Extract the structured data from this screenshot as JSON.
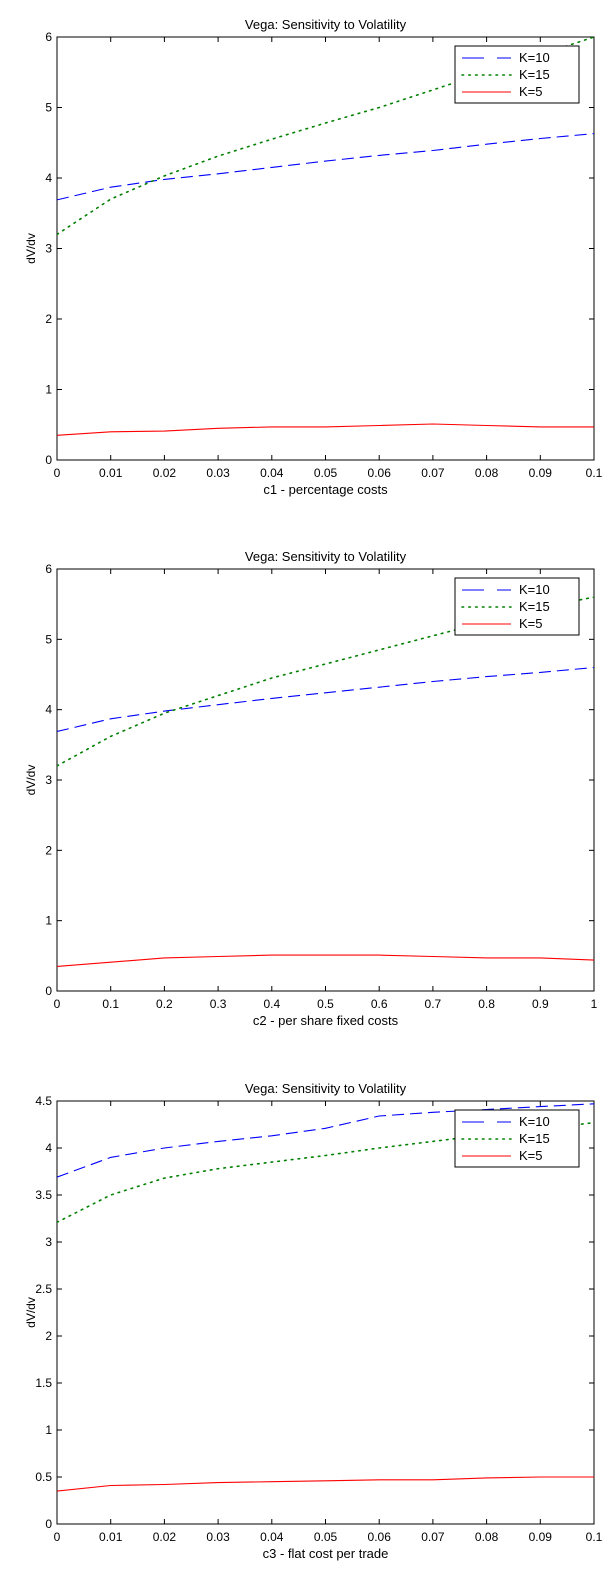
{
  "chart_data": [
    {
      "type": "line",
      "title": "Vega: Sensitivity to Volatility",
      "xlabel": "c1 - percentage costs",
      "ylabel": "dV/dv",
      "xlim": [
        0,
        0.1
      ],
      "ylim": [
        0,
        6
      ],
      "xticks": [
        "0",
        "0.01",
        "0.02",
        "0.03",
        "0.04",
        "0.05",
        "0.06",
        "0.07",
        "0.08",
        "0.09",
        "0.1"
      ],
      "yticks": [
        "0",
        "1",
        "2",
        "3",
        "4",
        "5",
        "6"
      ],
      "legend_position": "top-right",
      "x": [
        0,
        0.01,
        0.02,
        0.03,
        0.04,
        0.05,
        0.06,
        0.07,
        0.08,
        0.09,
        0.1
      ],
      "series": [
        {
          "name": "K=10",
          "style": "dashed",
          "color": "#0000ff",
          "values": [
            3.69,
            3.87,
            3.98,
            4.06,
            4.15,
            4.24,
            4.32,
            4.39,
            4.48,
            4.56,
            4.63
          ]
        },
        {
          "name": "K=15",
          "style": "dotted",
          "color": "#008000",
          "values": [
            3.2,
            3.7,
            4.03,
            4.31,
            4.55,
            4.78,
            5.0,
            5.25,
            5.5,
            5.75,
            6.0
          ]
        },
        {
          "name": "K=5",
          "style": "solid",
          "color": "#ff0000",
          "values": [
            0.35,
            0.4,
            0.41,
            0.45,
            0.47,
            0.47,
            0.49,
            0.51,
            0.49,
            0.47,
            0.47
          ]
        }
      ]
    },
    {
      "type": "line",
      "title": "Vega: Sensitivity to Volatility",
      "xlabel": "c2 - per share fixed costs",
      "ylabel": "dV/dv",
      "xlim": [
        0,
        1
      ],
      "ylim": [
        0,
        6
      ],
      "xticks": [
        "0",
        "0.1",
        "0.2",
        "0.3",
        "0.4",
        "0.5",
        "0.6",
        "0.7",
        "0.8",
        "0.9",
        "1"
      ],
      "yticks": [
        "0",
        "1",
        "2",
        "3",
        "4",
        "5",
        "6"
      ],
      "legend_position": "top-right",
      "x": [
        0,
        0.1,
        0.2,
        0.3,
        0.4,
        0.5,
        0.6,
        0.7,
        0.8,
        0.9,
        1
      ],
      "series": [
        {
          "name": "K=10",
          "style": "dashed",
          "color": "#0000ff",
          "values": [
            3.69,
            3.87,
            3.98,
            4.07,
            4.16,
            4.24,
            4.32,
            4.4,
            4.47,
            4.53,
            4.6
          ]
        },
        {
          "name": "K=15",
          "style": "dotted",
          "color": "#008000",
          "values": [
            3.2,
            3.62,
            3.95,
            4.2,
            4.45,
            4.65,
            4.85,
            5.05,
            5.25,
            5.45,
            5.6
          ]
        },
        {
          "name": "K=5",
          "style": "solid",
          "color": "#ff0000",
          "values": [
            0.35,
            0.41,
            0.47,
            0.49,
            0.51,
            0.51,
            0.51,
            0.49,
            0.47,
            0.47,
            0.44
          ]
        }
      ]
    },
    {
      "type": "line",
      "title": "Vega: Sensitivity to Volatility",
      "xlabel": "c3 - flat cost per trade",
      "ylabel": "dV/dv",
      "xlim": [
        0,
        0.1
      ],
      "ylim": [
        0,
        4.5
      ],
      "xticks": [
        "0",
        "0.01",
        "0.02",
        "0.03",
        "0.04",
        "0.05",
        "0.06",
        "0.07",
        "0.08",
        "0.09",
        "0.1"
      ],
      "yticks": [
        "0",
        "0.5",
        "1",
        "1.5",
        "2",
        "2.5",
        "3",
        "3.5",
        "4",
        "4.5"
      ],
      "legend_position": "top-right",
      "x": [
        0,
        0.01,
        0.02,
        0.03,
        0.04,
        0.05,
        0.06,
        0.07,
        0.08,
        0.09,
        0.1
      ],
      "series": [
        {
          "name": "K=10",
          "style": "dashed",
          "color": "#0000ff",
          "values": [
            3.69,
            3.9,
            4.0,
            4.07,
            4.13,
            4.21,
            4.34,
            4.38,
            4.41,
            4.44,
            4.47
          ]
        },
        {
          "name": "K=15",
          "style": "dotted",
          "color": "#008000",
          "values": [
            3.21,
            3.5,
            3.68,
            3.78,
            3.85,
            3.92,
            4.0,
            4.07,
            4.14,
            4.2,
            4.27
          ]
        },
        {
          "name": "K=5",
          "style": "solid",
          "color": "#ff0000",
          "values": [
            0.35,
            0.41,
            0.42,
            0.44,
            0.45,
            0.46,
            0.47,
            0.47,
            0.49,
            0.5,
            0.5
          ]
        }
      ]
    }
  ]
}
